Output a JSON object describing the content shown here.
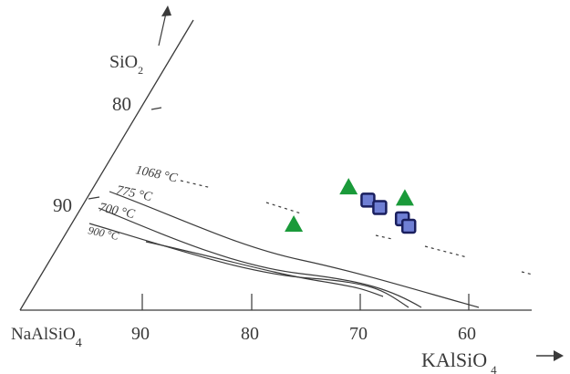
{
  "labels": {
    "sio2_main": "SiO",
    "sio2_sub": "2",
    "naalsio4": "NaAlSiO",
    "naalsio4_sub": "4",
    "kalsio4_main": "KAlSiO",
    "kalsio4_sub": "4",
    "left_tick_80": "80",
    "left_tick_90": "90",
    "bottom_tick_90": "90",
    "bottom_tick_80": "80",
    "bottom_tick_70": "70",
    "bottom_tick_60": "60"
  },
  "isotherms": {
    "t1068": "1068 °C",
    "t775": "775 °C",
    "t700": "700 °C",
    "t900": "900 °C"
  },
  "colors": {
    "line": "#3a3a3a",
    "triangle_fill": "#1a9a3a",
    "square_fill": "#6f7fd4",
    "square_stroke": "#1a1f5e"
  },
  "markers": {
    "triangles": [
      {
        "sio2": 83.2,
        "kalsio4": 23.5
      },
      {
        "sio2": 79.2,
        "kalsio4": 20.5
      },
      {
        "sio2": 82.0,
        "kalsio4": 29.3
      }
    ],
    "squares": [
      {
        "sio2": 81.8,
        "kalsio4": 26.0
      },
      {
        "sio2": 81.0,
        "kalsio4": 27.5
      },
      {
        "sio2": 79.8,
        "kalsio4": 30.2
      },
      {
        "sio2": 79.0,
        "kalsio4": 31.2
      }
    ]
  }
}
